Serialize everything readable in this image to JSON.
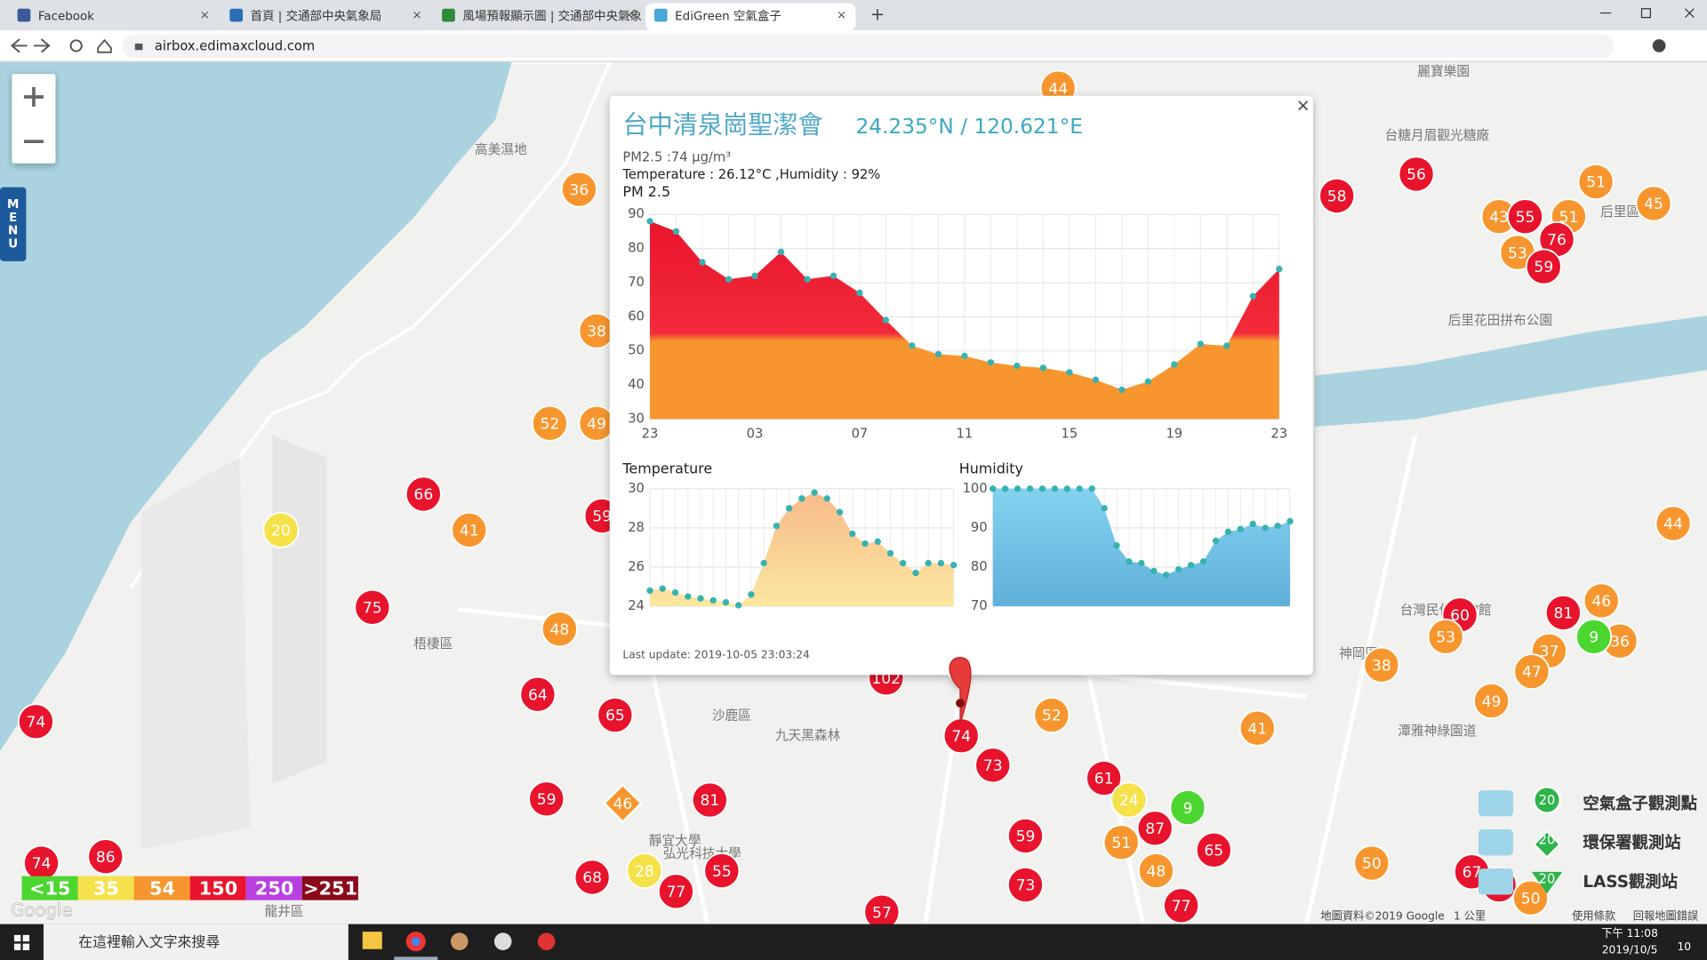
{
  "browser": {
    "tabs": [
      "Facebook",
      "首頁 | 交通部中央氣象局",
      "風場預報顯示圖 | 交通部中央氣象",
      "EdiGreen 空氣盒子"
    ],
    "url": "airbox.edimaxcloud.com"
  },
  "map": {
    "menu": "MENU",
    "places": [
      "高美濕地",
      "梧棲區",
      "沙鹿區",
      "九天黑森林",
      "靜宜大學",
      "弘光科技大學",
      "龍井區",
      "神岡區",
      "后里區",
      "后里花田拼布公園",
      "台糖月眉觀光糖廠",
      "麗寶樂園",
      "潭雅神綠園道",
      "台灣民俗文物館"
    ],
    "markers": [
      44,
      36,
      58,
      56,
      51,
      45,
      43,
      55,
      51,
      76,
      53,
      59,
      38,
      52,
      49,
      66,
      20,
      41,
      59,
      75,
      48,
      64,
      65,
      74,
      102,
      74,
      73,
      52,
      41,
      61,
      24,
      9,
      87,
      51,
      65,
      48,
      77,
      59,
      73,
      57,
      81,
      46,
      59,
      55,
      28,
      77,
      68,
      74,
      86,
      44,
      46,
      81,
      36,
      9,
      37,
      47,
      49,
      60,
      53,
      38,
      50,
      67,
      60,
      50
    ],
    "legend": [
      {
        "label": "<15",
        "value": 15,
        "color": "#4cd630"
      },
      {
        "label": "35",
        "value": 35,
        "color": "#f5e24a"
      },
      {
        "label": "54",
        "value": 54,
        "color": "#f7962e"
      },
      {
        "label": "150",
        "value": 150,
        "color": "#e8132c"
      },
      {
        "label": "250",
        "value": 250,
        "color": "#b83fe0"
      },
      {
        "label": ">251",
        "value": 251,
        "color": "#8b0a1a"
      }
    ],
    "station_legend": [
      {
        "label": "空氣盒子觀測點",
        "sample": "20"
      },
      {
        "label": "環保署觀測站",
        "sample": "20"
      },
      {
        "label": "LASS觀測站",
        "sample": "20"
      }
    ],
    "footer": [
      "地圖資料©2019 Google",
      "1 公里",
      "使用條款",
      "回報地圖錯誤"
    ],
    "google": "Google"
  },
  "popup": {
    "title": "台中清泉崗聖潔會",
    "coords": "24.235°N / 120.621°E",
    "pm25": "PM2.5 :74 μg/m³",
    "weather": "Temperature : 26.12°C ,Humidity : 92%",
    "pm_chart": {
      "type": "area",
      "title": "PM 2.5",
      "categories": [
        "23",
        null,
        null,
        null,
        "03",
        null,
        null,
        null,
        "07",
        null,
        null,
        null,
        "11",
        null,
        null,
        null,
        "15",
        null,
        null,
        null,
        "19",
        null,
        null,
        null,
        "23"
      ],
      "values": [
        88,
        85,
        76,
        71,
        72,
        79,
        71,
        72,
        67,
        59,
        51.5,
        49,
        48.5,
        46.6,
        45.6,
        45,
        43.7,
        41.5,
        38.6,
        41,
        46,
        52,
        51.5,
        66,
        74
      ],
      "ylim": [
        30,
        90
      ],
      "yticks": [
        30,
        40,
        50,
        60,
        70,
        80,
        90
      ],
      "grid": true
    },
    "temperature_chart": {
      "type": "area",
      "title": "Temperature",
      "values": [
        24.8,
        24.9,
        24.7,
        24.5,
        24.4,
        24.3,
        24.2,
        24.05,
        24.6,
        26.2,
        28.1,
        29,
        29.5,
        29.8,
        29.5,
        28.8,
        27.7,
        27.2,
        27.3,
        26.7,
        26.2,
        25.7,
        26.2,
        26.2,
        26.1
      ],
      "ylim": [
        24,
        30
      ],
      "yticks": [
        24,
        26,
        28,
        30
      ],
      "colors": [
        "#f7b98a",
        "#fbe7a0"
      ],
      "grid": true
    },
    "humidity_chart": {
      "type": "area",
      "title": "Humidity",
      "values": [
        100,
        100,
        100,
        100,
        100,
        100,
        100,
        100,
        100,
        95,
        85.5,
        81.4,
        81,
        79,
        78,
        79.4,
        80.5,
        81.4,
        86.7,
        89,
        89.7,
        91,
        90,
        90.5,
        91.7
      ],
      "ylim": [
        70,
        100
      ],
      "yticks": [
        70,
        80,
        90,
        100
      ],
      "colors": [
        "#84d2f0",
        "#5fb0da"
      ],
      "grid": true
    },
    "last_update": "Last update: 2019-10-05 23:03:24"
  },
  "taskbar": {
    "search": "在這裡輸入文字來搜尋",
    "time": "下午 11:08",
    "date": "2019/10/5",
    "badge": "10"
  }
}
